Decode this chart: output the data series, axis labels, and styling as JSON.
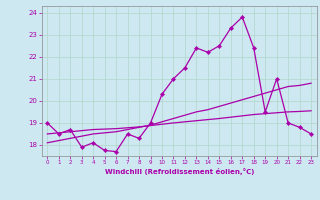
{
  "xlabel": "Windchill (Refroidissement éolien,°C)",
  "background_color": "#cde8f0",
  "grid_color": "#b0d8c8",
  "line_color": "#aa00aa",
  "hours": [
    0,
    1,
    2,
    3,
    4,
    5,
    6,
    7,
    8,
    9,
    10,
    11,
    12,
    13,
    14,
    15,
    16,
    17,
    18,
    19,
    20,
    21,
    22,
    23
  ],
  "series1": [
    19.0,
    18.5,
    18.7,
    17.9,
    18.1,
    17.75,
    17.7,
    18.5,
    18.3,
    19.0,
    20.3,
    21.0,
    21.5,
    22.4,
    22.2,
    22.5,
    23.3,
    23.8,
    22.4,
    19.5,
    21.0,
    19.0,
    18.8,
    18.5
  ],
  "series2": [
    18.1,
    18.2,
    18.3,
    18.4,
    18.5,
    18.55,
    18.6,
    18.7,
    18.8,
    18.9,
    19.05,
    19.2,
    19.35,
    19.5,
    19.6,
    19.75,
    19.9,
    20.05,
    20.2,
    20.35,
    20.5,
    20.65,
    20.7,
    20.8
  ],
  "series3": [
    18.5,
    18.55,
    18.6,
    18.65,
    18.7,
    18.72,
    18.74,
    18.78,
    18.82,
    18.88,
    18.94,
    19.0,
    19.05,
    19.1,
    19.15,
    19.2,
    19.26,
    19.32,
    19.38,
    19.42,
    19.46,
    19.5,
    19.52,
    19.55
  ],
  "xlim": [
    -0.5,
    23.5
  ],
  "ylim": [
    17.5,
    24.3
  ],
  "yticks": [
    18,
    19,
    20,
    21,
    22,
    23,
    24
  ],
  "xticks": [
    0,
    1,
    2,
    3,
    4,
    5,
    6,
    7,
    8,
    9,
    10,
    11,
    12,
    13,
    14,
    15,
    16,
    17,
    18,
    19,
    20,
    21,
    22,
    23
  ]
}
